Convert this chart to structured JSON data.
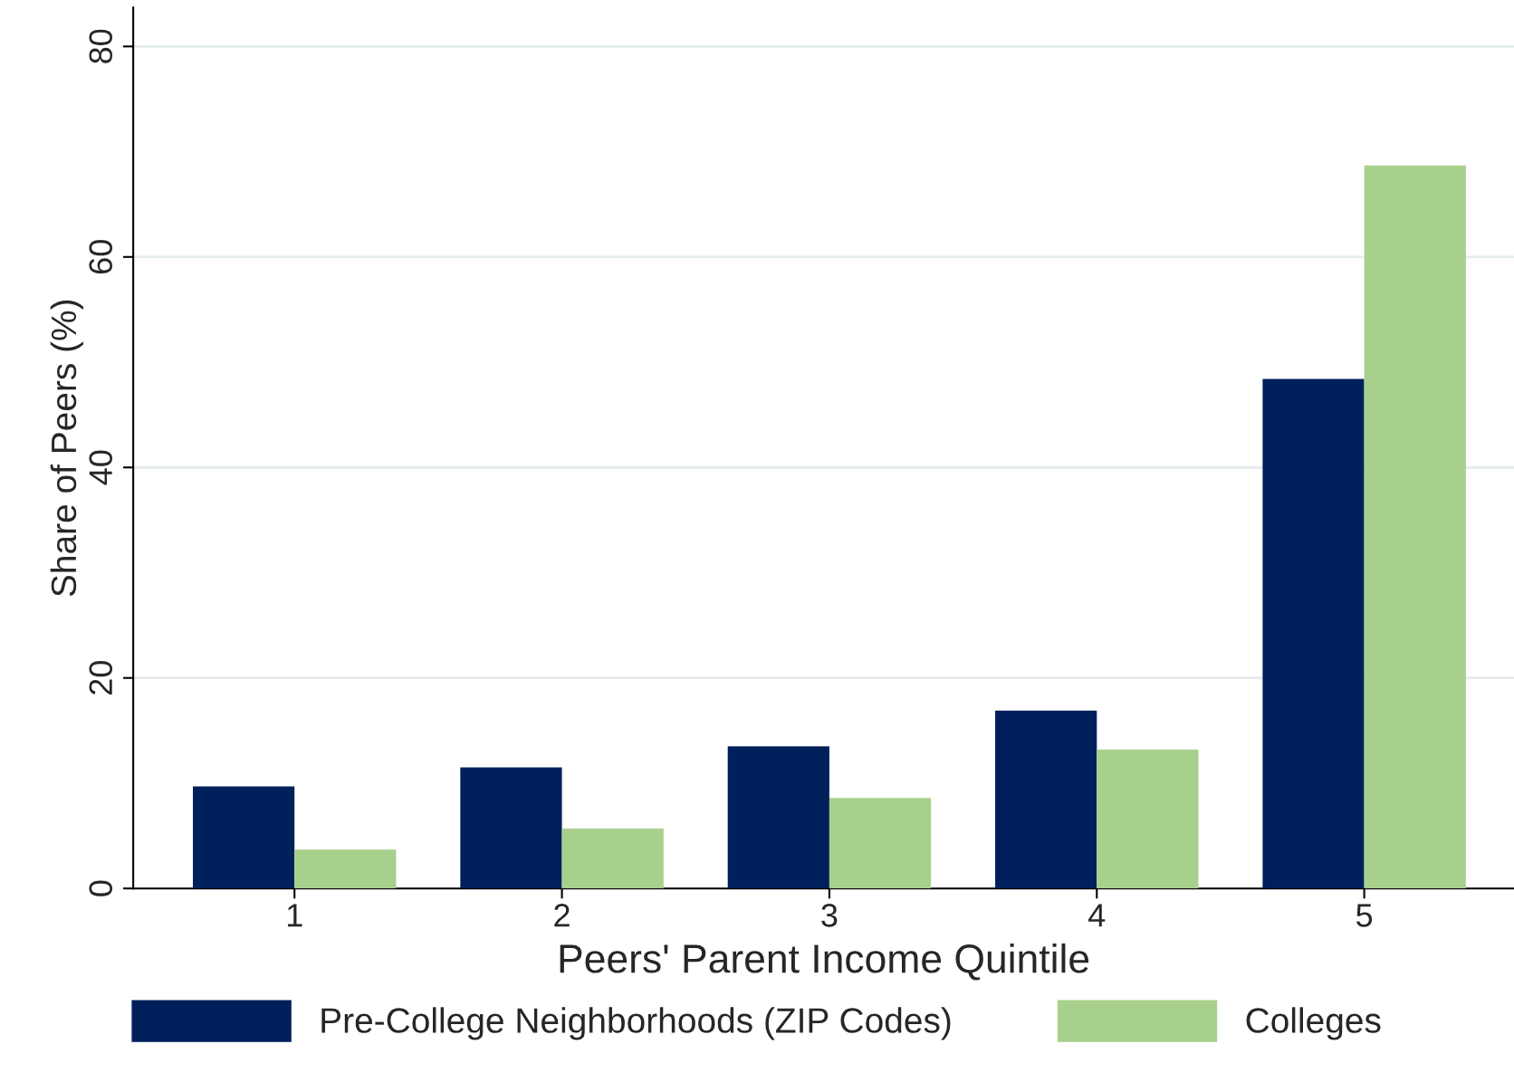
{
  "chart_data": {
    "type": "bar",
    "xlabel": "Peers' Parent Income Quintile",
    "ylabel": "Share of Peers (%)",
    "categories": [
      "1",
      "2",
      "3",
      "4",
      "5"
    ],
    "series": [
      {
        "name": "Pre-College Neighborhoods (ZIP Codes)",
        "color": "#00205b",
        "values": [
          9.7,
          11.5,
          13.5,
          16.9,
          48.4
        ]
      },
      {
        "name": "Colleges",
        "color": "#a8d08d",
        "values": [
          3.7,
          5.7,
          8.6,
          13.2,
          68.7
        ]
      }
    ],
    "ylim": [
      0,
      83.7
    ],
    "yticks": [
      0,
      20,
      40,
      60,
      80
    ],
    "grid": "y",
    "legend": "bottom"
  }
}
